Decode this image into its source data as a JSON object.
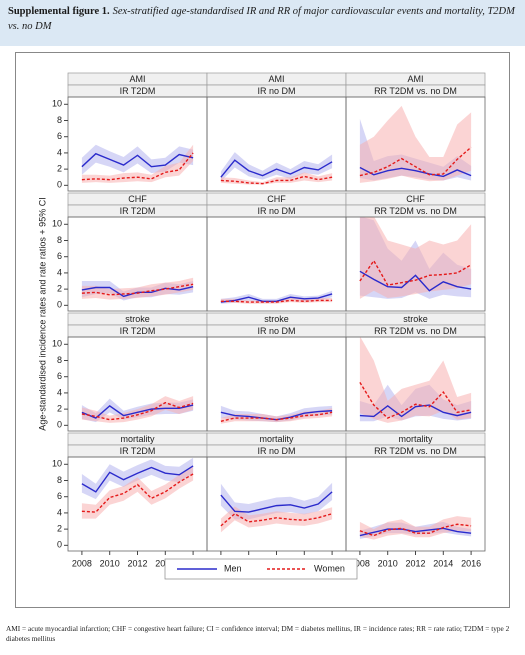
{
  "header": {
    "label": "Supplemental figure 1.",
    "title": "Sex-stratified age-standardised IR and RR of major cardiovascular events and mortality, T2DM vs. no DM"
  },
  "footnote": "AMI = acute myocardial infarction; CHF = congestive heart failure; CI = confidence interval; DM = diabetes mellitus, IR = incidence rates; RR = rate ratio; T2DM = type 2 diabetes mellitus",
  "chart_data": {
    "type": "line",
    "y_label": "Age-standardised incidence rates and rate ratios + 95% CI",
    "x": [
      2008,
      2009,
      2010,
      2011,
      2012,
      2013,
      2014,
      2015,
      2016
    ],
    "xlim": [
      2007,
      2017
    ],
    "xticks": [
      2008,
      2010,
      2012,
      2014,
      2016
    ],
    "ylim": [
      -0.7,
      10.9
    ],
    "yticks": [
      0,
      2,
      4,
      6,
      8,
      10
    ],
    "legend": "bottom",
    "series": [
      {
        "name": "Men",
        "color": "#2b2bcc",
        "band_color": "#b4b4ee",
        "dashed": false
      },
      {
        "name": "Women",
        "color": "#e41a1a",
        "band_color": "#f7b0b0",
        "dashed": true
      }
    ],
    "panels": [
      {
        "group": "AMI",
        "label": "IR T2DM",
        "series": [
          {
            "values": [
              2.3,
              3.9,
              3.2,
              2.5,
              3.7,
              2.3,
              2.5,
              3.8,
              3.4
            ],
            "lower": [
              1.3,
              2.8,
              2.3,
              1.6,
              2.7,
              1.5,
              1.7,
              2.8,
              2.5
            ],
            "upper": [
              3.4,
              5.0,
              4.2,
              3.5,
              4.8,
              3.2,
              3.4,
              4.8,
              4.4
            ]
          },
          {
            "values": [
              0.7,
              0.8,
              0.7,
              0.9,
              1.0,
              0.8,
              1.6,
              1.9,
              4.0
            ],
            "lower": [
              0.3,
              0.4,
              0.3,
              0.4,
              0.5,
              0.4,
              1.0,
              1.2,
              3.0
            ],
            "upper": [
              1.3,
              1.3,
              1.2,
              1.5,
              1.6,
              1.3,
              2.4,
              2.8,
              5.0
            ]
          }
        ]
      },
      {
        "group": "AMI",
        "label": "IR no DM",
        "series": [
          {
            "values": [
              1.0,
              3.1,
              1.8,
              1.2,
              2.0,
              1.4,
              2.2,
              1.9,
              2.9
            ],
            "lower": [
              0.5,
              2.2,
              1.1,
              0.7,
              1.3,
              0.8,
              1.5,
              1.3,
              2.1
            ],
            "upper": [
              1.7,
              4.1,
              2.6,
              1.8,
              2.8,
              2.0,
              3.0,
              2.6,
              3.8
            ]
          },
          {
            "values": [
              0.6,
              0.5,
              0.3,
              0.2,
              0.6,
              0.6,
              1.1,
              0.7,
              1.0
            ],
            "lower": [
              0.3,
              0.2,
              0.1,
              0.1,
              0.3,
              0.3,
              0.6,
              0.4,
              0.6
            ],
            "upper": [
              1.0,
              0.9,
              0.6,
              0.4,
              1.0,
              1.0,
              1.6,
              1.1,
              1.5
            ]
          }
        ]
      },
      {
        "group": "AMI",
        "label": "RR T2DM vs. no DM",
        "series": [
          {
            "values": [
              2.2,
              1.3,
              1.8,
              2.1,
              1.8,
              1.4,
              1.1,
              1.9,
              1.2
            ],
            "lower": [
              0.9,
              0.6,
              0.9,
              1.2,
              1.0,
              0.7,
              0.6,
              1.0,
              0.6
            ],
            "upper": [
              8.2,
              3.0,
              3.6,
              3.8,
              3.3,
              2.8,
              2.3,
              3.6,
              2.4
            ]
          },
          {
            "values": [
              1.2,
              1.6,
              2.3,
              3.3,
              2.3,
              1.3,
              1.4,
              3.2,
              4.7
            ],
            "lower": [
              0.3,
              0.5,
              0.8,
              1.2,
              0.8,
              0.5,
              0.6,
              1.2,
              1.8
            ],
            "upper": [
              5.0,
              6.0,
              8.0,
              9.8,
              6.0,
              3.5,
              3.5,
              7.5,
              9.0
            ]
          }
        ]
      },
      {
        "group": "CHF",
        "label": "IR T2DM",
        "series": [
          {
            "values": [
              1.9,
              2.2,
              2.2,
              1.1,
              1.6,
              1.6,
              2.1,
              1.9,
              2.3
            ],
            "lower": [
              1.0,
              1.4,
              1.5,
              0.6,
              1.0,
              1.0,
              1.4,
              1.3,
              1.6
            ],
            "upper": [
              3.0,
              3.0,
              3.0,
              1.7,
              2.2,
              2.2,
              2.8,
              2.6,
              3.0
            ]
          },
          {
            "values": [
              1.5,
              1.6,
              1.3,
              1.4,
              1.5,
              1.8,
              2.0,
              2.3,
              2.6
            ],
            "lower": [
              0.8,
              0.9,
              0.7,
              0.8,
              0.9,
              1.1,
              1.3,
              1.6,
              1.9
            ],
            "upper": [
              2.4,
              2.4,
              2.0,
              2.1,
              2.2,
              2.6,
              2.8,
              3.0,
              3.4
            ]
          }
        ]
      },
      {
        "group": "CHF",
        "label": "IR no DM",
        "series": [
          {
            "values": [
              0.4,
              0.6,
              1.0,
              0.5,
              0.5,
              1.0,
              0.8,
              0.9,
              1.4
            ],
            "lower": [
              0.2,
              0.3,
              0.6,
              0.3,
              0.3,
              0.7,
              0.5,
              0.6,
              1.0
            ],
            "upper": [
              0.8,
              1.0,
              1.4,
              0.8,
              0.8,
              1.4,
              1.1,
              1.2,
              1.8
            ]
          },
          {
            "values": [
              0.5,
              0.5,
              0.4,
              0.4,
              0.4,
              0.6,
              0.5,
              0.6,
              0.6
            ],
            "lower": [
              0.3,
              0.3,
              0.2,
              0.2,
              0.2,
              0.4,
              0.3,
              0.4,
              0.4
            ],
            "upper": [
              0.8,
              0.8,
              0.6,
              0.6,
              0.6,
              0.9,
              0.8,
              0.9,
              0.9
            ]
          }
        ]
      },
      {
        "group": "CHF",
        "label": "RR T2DM vs. no DM",
        "series": [
          {
            "values": [
              4.2,
              3.2,
              2.3,
              2.2,
              3.7,
              1.8,
              2.9,
              2.3,
              2.0
            ],
            "lower": [
              1.2,
              1.0,
              0.8,
              0.9,
              1.6,
              0.8,
              1.3,
              1.1,
              1.0
            ],
            "upper": [
              11,
              10.5,
              7.0,
              5.5,
              8.0,
              4.5,
              6.5,
              5.0,
              4.5
            ]
          },
          {
            "values": [
              3.0,
              5.5,
              2.5,
              2.8,
              3.1,
              3.7,
              3.8,
              4.0,
              5.0
            ],
            "lower": [
              0.8,
              1.8,
              0.9,
              1.1,
              1.4,
              1.7,
              1.9,
              2.1,
              2.6
            ],
            "upper": [
              11,
              11,
              8.0,
              7.5,
              7.0,
              8.0,
              7.5,
              8.0,
              10
            ]
          }
        ]
      },
      {
        "group": "stroke",
        "label": "IR T2DM",
        "series": [
          {
            "values": [
              1.6,
              0.9,
              2.4,
              1.2,
              1.6,
              2.0,
              2.1,
              2.1,
              2.5
            ],
            "lower": [
              0.8,
              0.4,
              1.6,
              0.7,
              1.0,
              1.3,
              1.4,
              1.4,
              1.8
            ],
            "upper": [
              2.5,
              1.5,
              3.3,
              1.8,
              2.3,
              2.7,
              2.8,
              2.8,
              3.2
            ]
          },
          {
            "values": [
              1.4,
              1.1,
              0.7,
              0.9,
              1.3,
              1.8,
              2.8,
              2.2,
              2.7
            ],
            "lower": [
              0.7,
              0.5,
              0.3,
              0.4,
              0.7,
              1.1,
              1.9,
              1.4,
              1.9
            ],
            "upper": [
              2.2,
              1.8,
              1.2,
              1.5,
              2.0,
              2.6,
              3.6,
              3.0,
              3.6
            ]
          }
        ]
      },
      {
        "group": "stroke",
        "label": "IR no DM",
        "series": [
          {
            "values": [
              1.6,
              1.2,
              1.1,
              0.9,
              0.7,
              1.0,
              1.5,
              1.7,
              1.8
            ],
            "lower": [
              0.9,
              0.7,
              0.6,
              0.5,
              0.4,
              0.6,
              1.0,
              1.2,
              1.3
            ],
            "upper": [
              2.4,
              1.8,
              1.7,
              1.4,
              1.1,
              1.5,
              2.1,
              2.3,
              2.4
            ]
          },
          {
            "values": [
              0.5,
              0.9,
              0.9,
              0.9,
              0.7,
              0.9,
              1.2,
              1.3,
              1.6
            ],
            "lower": [
              0.2,
              0.5,
              0.5,
              0.5,
              0.4,
              0.5,
              0.8,
              0.9,
              1.1
            ],
            "upper": [
              0.9,
              1.4,
              1.4,
              1.4,
              1.1,
              1.3,
              1.7,
              1.8,
              2.1
            ]
          }
        ]
      },
      {
        "group": "stroke",
        "label": "RR T2DM vs. no DM",
        "series": [
          {
            "values": [
              1.2,
              1.1,
              2.4,
              1.1,
              2.3,
              2.5,
              1.6,
              1.2,
              1.6
            ],
            "lower": [
              0.5,
              0.5,
              1.1,
              0.6,
              1.1,
              1.2,
              0.8,
              0.6,
              0.8
            ],
            "upper": [
              3.0,
              2.5,
              5.0,
              2.5,
              4.5,
              5.0,
              3.2,
              2.5,
              3.0
            ]
          },
          {
            "values": [
              5.3,
              2.5,
              0.9,
              1.6,
              2.6,
              2.3,
              4.1,
              1.6,
              1.9
            ],
            "lower": [
              1.5,
              0.8,
              0.3,
              0.6,
              1.2,
              1.1,
              1.8,
              0.7,
              0.9
            ],
            "upper": [
              11,
              8.0,
              3.0,
              4.5,
              5.0,
              5.5,
              8.0,
              3.5,
              4.0
            ]
          }
        ]
      },
      {
        "group": "mortality",
        "label": "IR T2DM",
        "series": [
          {
            "values": [
              7.6,
              6.6,
              9.0,
              8.1,
              8.9,
              9.6,
              8.9,
              8.7,
              9.8
            ],
            "lower": [
              6.5,
              5.7,
              8.0,
              7.2,
              8.0,
              8.7,
              8.0,
              7.8,
              8.9
            ],
            "upper": [
              8.8,
              7.6,
              10.0,
              9.1,
              9.9,
              10.6,
              9.8,
              9.7,
              10.8
            ]
          },
          {
            "values": [
              4.2,
              4.1,
              5.9,
              6.4,
              7.5,
              5.8,
              6.6,
              7.8,
              8.8
            ],
            "lower": [
              3.3,
              3.3,
              5.0,
              5.5,
              6.6,
              5.0,
              5.8,
              7.0,
              8.0
            ],
            "upper": [
              5.2,
              5.0,
              6.8,
              7.3,
              8.4,
              6.7,
              7.5,
              8.7,
              9.7
            ]
          }
        ]
      },
      {
        "group": "mortality",
        "label": "IR no DM",
        "series": [
          {
            "values": [
              6.2,
              4.2,
              4.1,
              4.5,
              4.9,
              5.0,
              4.6,
              5.1,
              6.6
            ],
            "lower": [
              4.9,
              3.2,
              3.2,
              3.6,
              4.0,
              4.1,
              3.8,
              4.2,
              5.6
            ],
            "upper": [
              7.6,
              5.3,
              5.1,
              5.5,
              5.9,
              6.0,
              5.5,
              6.0,
              7.7
            ]
          },
          {
            "values": [
              2.4,
              3.9,
              2.9,
              3.1,
              3.4,
              3.2,
              3.1,
              3.4,
              3.9
            ],
            "lower": [
              1.6,
              3.1,
              2.2,
              2.4,
              2.7,
              2.5,
              2.4,
              2.7,
              3.2
            ],
            "upper": [
              3.3,
              4.8,
              3.7,
              3.9,
              4.2,
              4.0,
              3.9,
              4.2,
              4.7
            ]
          }
        ]
      },
      {
        "group": "mortality",
        "label": "RR T2DM vs. no DM",
        "series": [
          {
            "values": [
              1.2,
              1.6,
              2.0,
              2.0,
              1.7,
              1.9,
              2.1,
              1.7,
              1.5
            ],
            "lower": [
              0.8,
              1.1,
              1.5,
              1.5,
              1.3,
              1.4,
              1.6,
              1.3,
              1.1
            ],
            "upper": [
              1.8,
              2.3,
              2.8,
              2.8,
              2.3,
              2.6,
              2.9,
              2.3,
              2.0
            ]
          },
          {
            "values": [
              1.8,
              1.2,
              1.9,
              2.1,
              1.5,
              1.5,
              2.2,
              2.6,
              2.4
            ],
            "lower": [
              1.1,
              0.7,
              1.2,
              1.4,
              1.0,
              1.0,
              1.5,
              1.8,
              1.7
            ],
            "upper": [
              2.9,
              2.0,
              2.9,
              3.2,
              2.3,
              2.3,
              3.2,
              3.6,
              3.4
            ]
          }
        ]
      }
    ]
  }
}
